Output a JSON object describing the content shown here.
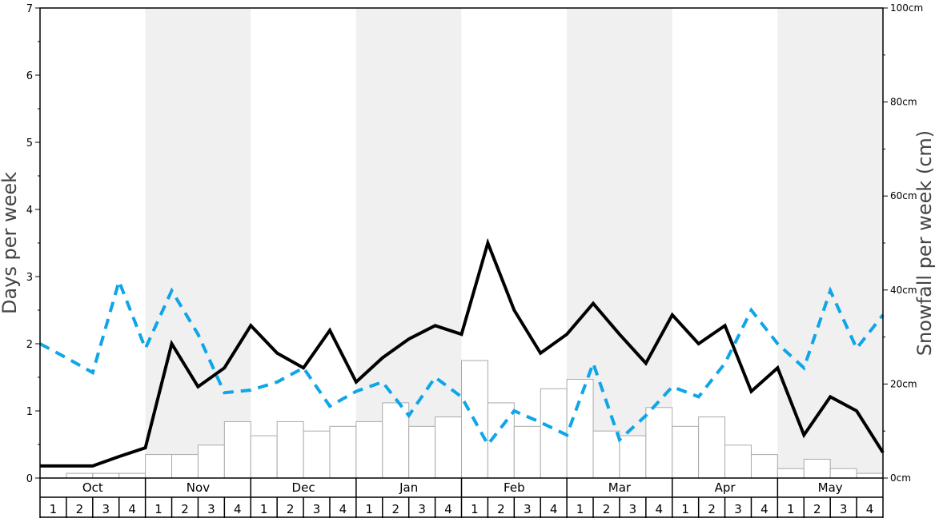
{
  "chart_data": {
    "type": "bar+line",
    "title": "",
    "ylabel_left": "Days per week",
    "ylabel_right": "Snowfall per week (cm)",
    "ylim_left": [
      0,
      7
    ],
    "ylim_right": [
      0,
      100
    ],
    "yticks_left": [
      "0",
      "1",
      "2",
      "3",
      "4",
      "5",
      "6",
      "7"
    ],
    "yticks_right": [
      "0cm",
      "20cm",
      "40cm",
      "60cm",
      "80cm",
      "100cm"
    ],
    "months": [
      "Oct",
      "Nov",
      "Dec",
      "Jan",
      "Feb",
      "Mar",
      "Apr",
      "May"
    ],
    "weeks": [
      "1",
      "2",
      "3",
      "4"
    ],
    "shaded_months": [
      "Nov",
      "Jan",
      "Mar",
      "May"
    ],
    "series": [
      {
        "role": "snowfall-bars",
        "axis": "right",
        "color": "#ffffff",
        "stroke": "#aaaaaa",
        "values": [
          0,
          1,
          1,
          1,
          5,
          5,
          7,
          12,
          9,
          12,
          10,
          11,
          12,
          16,
          11,
          13,
          25,
          16,
          11,
          19,
          21,
          10,
          9,
          15,
          11,
          13,
          7,
          5,
          2,
          4,
          2,
          1
        ]
      },
      {
        "role": "black-line",
        "axis": "left",
        "color": "#000000",
        "values": [
          0.18,
          0.18,
          0.18,
          0.32,
          0.45,
          2.0,
          1.36,
          1.64,
          2.27,
          1.86,
          1.64,
          2.2,
          1.43,
          1.79,
          2.07,
          2.27,
          2.14,
          3.5,
          2.5,
          1.86,
          2.14,
          2.6,
          2.14,
          1.71,
          2.43,
          2.0,
          2.27,
          1.29,
          1.64,
          0.64,
          1.21,
          1.0,
          0.38
        ]
      },
      {
        "role": "blue-dashed-line",
        "axis": "left",
        "color": "#0ea5e9",
        "values": [
          2.0,
          1.79,
          1.57,
          2.93,
          1.93,
          2.79,
          2.14,
          1.27,
          1.31,
          1.43,
          1.64,
          1.07,
          1.29,
          1.43,
          0.93,
          1.5,
          1.21,
          0.5,
          1.0,
          0.83,
          0.64,
          1.71,
          0.57,
          0.93,
          1.36,
          1.21,
          1.71,
          2.5,
          2.0,
          1.64,
          2.79,
          1.93,
          2.43
        ]
      }
    ]
  }
}
